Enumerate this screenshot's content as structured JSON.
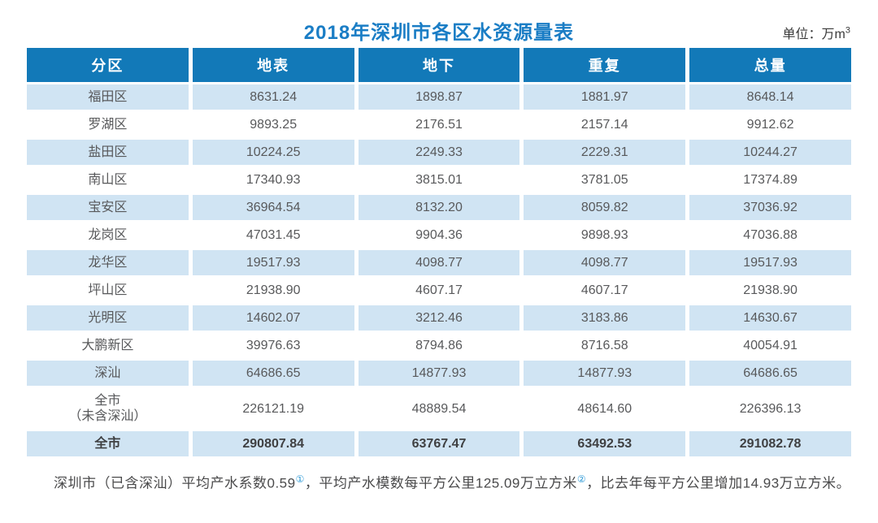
{
  "title": "2018年深圳市各区水资源量表",
  "unit": {
    "prefix": "单位：万m",
    "sup": "3"
  },
  "table": {
    "columns": [
      "分区",
      "地表",
      "地下",
      "重复",
      "总量"
    ],
    "rows": [
      {
        "name": "福田区",
        "values": [
          "8631.24",
          "1898.87",
          "1881.97",
          "8648.14"
        ],
        "bold": false
      },
      {
        "name": "罗湖区",
        "values": [
          "9893.25",
          "2176.51",
          "2157.14",
          "9912.62"
        ],
        "bold": false
      },
      {
        "name": "盐田区",
        "values": [
          "10224.25",
          "2249.33",
          "2229.31",
          "10244.27"
        ],
        "bold": false
      },
      {
        "name": "南山区",
        "values": [
          "17340.93",
          "3815.01",
          "3781.05",
          "17374.89"
        ],
        "bold": false
      },
      {
        "name": "宝安区",
        "values": [
          "36964.54",
          "8132.20",
          "8059.82",
          "37036.92"
        ],
        "bold": false
      },
      {
        "name": "龙岗区",
        "values": [
          "47031.45",
          "9904.36",
          "9898.93",
          "47036.88"
        ],
        "bold": false
      },
      {
        "name": "龙华区",
        "values": [
          "19517.93",
          "4098.77",
          "4098.77",
          "19517.93"
        ],
        "bold": false
      },
      {
        "name": "坪山区",
        "values": [
          "21938.90",
          "4607.17",
          "4607.17",
          "21938.90"
        ],
        "bold": false
      },
      {
        "name": "光明区",
        "values": [
          "14602.07",
          "3212.46",
          "3183.86",
          "14630.67"
        ],
        "bold": false
      },
      {
        "name": "大鹏新区",
        "values": [
          "39976.63",
          "8794.86",
          "8716.58",
          "40054.91"
        ],
        "bold": false
      },
      {
        "name": "深汕",
        "values": [
          "64686.65",
          "14877.93",
          "14877.93",
          "64686.65"
        ],
        "bold": false
      },
      {
        "name": "全市\n（未含深汕）",
        "values": [
          "226121.19",
          "48889.54",
          "48614.60",
          "226396.13"
        ],
        "bold": false
      },
      {
        "name": "全市",
        "values": [
          "290807.84",
          "63767.47",
          "63492.53",
          "291082.78"
        ],
        "bold": true
      }
    ]
  },
  "footnote": {
    "part1": "深圳市（已含深汕）平均产水系数0.59",
    "ref1": "①",
    "part2": "，平均产水模数每平方公里125.09万立方米",
    "ref2": "②",
    "part3": "，比去年每平方公里增加14.93万立方米。"
  },
  "colors": {
    "header_blue": "#1279B8",
    "title_blue": "#1A7DC5",
    "stripe_blue": "#D0E4F3",
    "body_text": "#58595B",
    "reference_blue": "#2E9AD6"
  }
}
